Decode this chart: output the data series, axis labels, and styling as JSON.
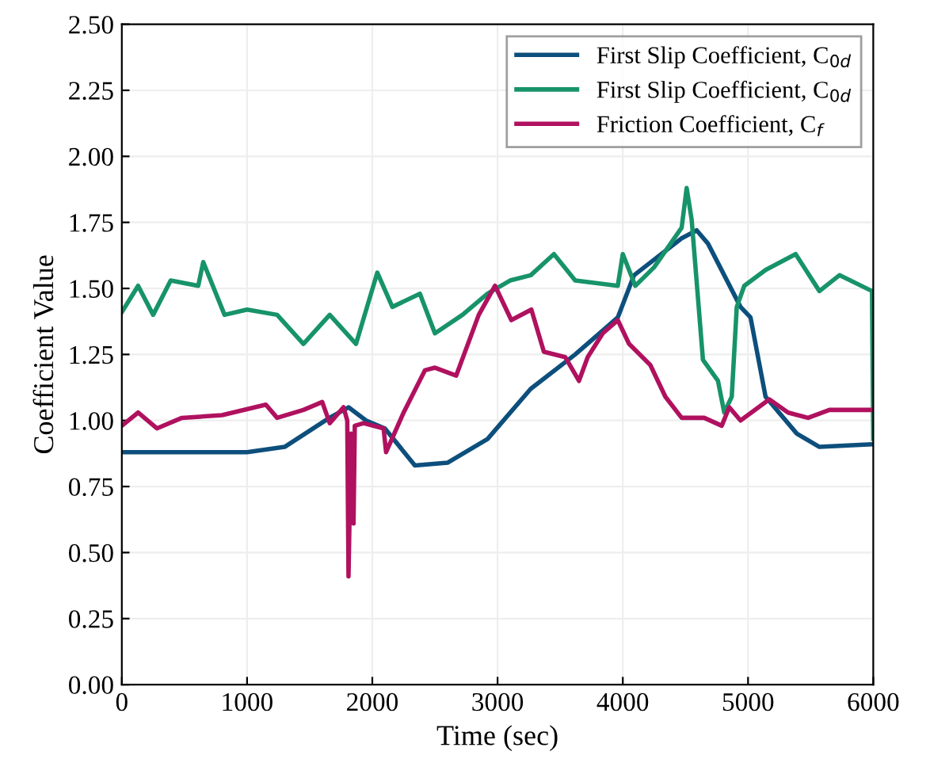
{
  "chart_data": {
    "type": "line",
    "xlabel": "Time (sec)",
    "ylabel": "Coefficient Value",
    "xlim": [
      0,
      6000
    ],
    "ylim": [
      0,
      2.5
    ],
    "xticks": [
      0,
      1000,
      2000,
      3000,
      4000,
      5000,
      6000
    ],
    "yticks": [
      {
        "value": 0,
        "label": "0.00"
      },
      {
        "value": 0.25,
        "label": "0.25"
      },
      {
        "value": 0.5,
        "label": "0.50"
      },
      {
        "value": 0.75,
        "label": "0.75"
      },
      {
        "value": 1,
        "label": "1.00"
      },
      {
        "value": 1.25,
        "label": "1.25"
      },
      {
        "value": 1.5,
        "label": "1.50"
      },
      {
        "value": 1.75,
        "label": "1.75"
      },
      {
        "value": 2,
        "label": "2.00"
      },
      {
        "value": 2.25,
        "label": "2.25"
      },
      {
        "value": 2.5,
        "label": "2.50"
      }
    ],
    "grid": true,
    "legend": "top right",
    "marker": "none",
    "line_style": "solid",
    "series": [
      {
        "name": "First Slip Coefficient, C$_{0d}$",
        "color": "#0d4f7c",
        "x": [
          0,
          500,
          1000,
          1300,
          1658,
          1810,
          1950,
          2100,
          2340,
          2600,
          2920,
          3265,
          3620,
          3960,
          4090,
          4470,
          4590,
          4680,
          4810,
          4940,
          5020,
          5140,
          5390,
          5570,
          5990,
          6000
        ],
        "values": [
          0.88,
          0.88,
          0.88,
          0.9,
          1.01,
          1.05,
          1.0,
          0.97,
          0.83,
          0.84,
          0.93,
          1.12,
          1.25,
          1.39,
          1.55,
          1.69,
          1.72,
          1.67,
          1.55,
          1.43,
          1.39,
          1.09,
          0.95,
          0.9,
          0.91,
          0.91
        ]
      },
      {
        "name": "First Slip Coefficient, C$_{0d}$",
        "color": "#17936a",
        "x": [
          0,
          130,
          250,
          390,
          610,
          650,
          820,
          1000,
          1240,
          1450,
          1660,
          1870,
          2040,
          2160,
          2380,
          2500,
          2720,
          2920,
          3100,
          3265,
          3450,
          3620,
          3960,
          4000,
          4100,
          4250,
          4470,
          4510,
          4550,
          4640,
          4760,
          4810,
          4870,
          4910,
          4970,
          5140,
          5380,
          5570,
          5730,
          5990,
          6000
        ],
        "values": [
          1.41,
          1.51,
          1.4,
          1.53,
          1.51,
          1.6,
          1.4,
          1.42,
          1.4,
          1.29,
          1.4,
          1.29,
          1.56,
          1.43,
          1.48,
          1.33,
          1.4,
          1.48,
          1.53,
          1.55,
          1.63,
          1.53,
          1.51,
          1.63,
          1.51,
          1.58,
          1.73,
          1.88,
          1.76,
          1.23,
          1.15,
          1.03,
          1.09,
          1.43,
          1.51,
          1.57,
          1.63,
          1.49,
          1.55,
          1.49,
          0.93
        ]
      },
      {
        "name": "Friction Coefficient, C$_{f}$",
        "color": "#b0115f",
        "x": [
          0,
          130,
          280,
          480,
          800,
          1150,
          1240,
          1450,
          1600,
          1660,
          1770,
          1800,
          1810,
          1830,
          1850,
          1860,
          1930,
          2090,
          2110,
          2250,
          2420,
          2500,
          2670,
          2850,
          2980,
          3110,
          3270,
          3370,
          3540,
          3650,
          3720,
          3840,
          3960,
          4050,
          4220,
          4340,
          4470,
          4650,
          4790,
          4850,
          4940,
          5170,
          5320,
          5480,
          5650,
          6000
        ],
        "values": [
          0.98,
          1.03,
          0.97,
          1.01,
          1.02,
          1.06,
          1.01,
          1.04,
          1.07,
          0.99,
          1.05,
          1.0,
          0.41,
          0.95,
          0.61,
          0.98,
          0.99,
          0.97,
          0.88,
          1.03,
          1.19,
          1.2,
          1.17,
          1.4,
          1.51,
          1.38,
          1.42,
          1.26,
          1.24,
          1.15,
          1.24,
          1.33,
          1.38,
          1.29,
          1.21,
          1.09,
          1.01,
          1.01,
          0.98,
          1.05,
          1.0,
          1.08,
          1.03,
          1.01,
          1.04,
          1.04
        ]
      }
    ]
  }
}
